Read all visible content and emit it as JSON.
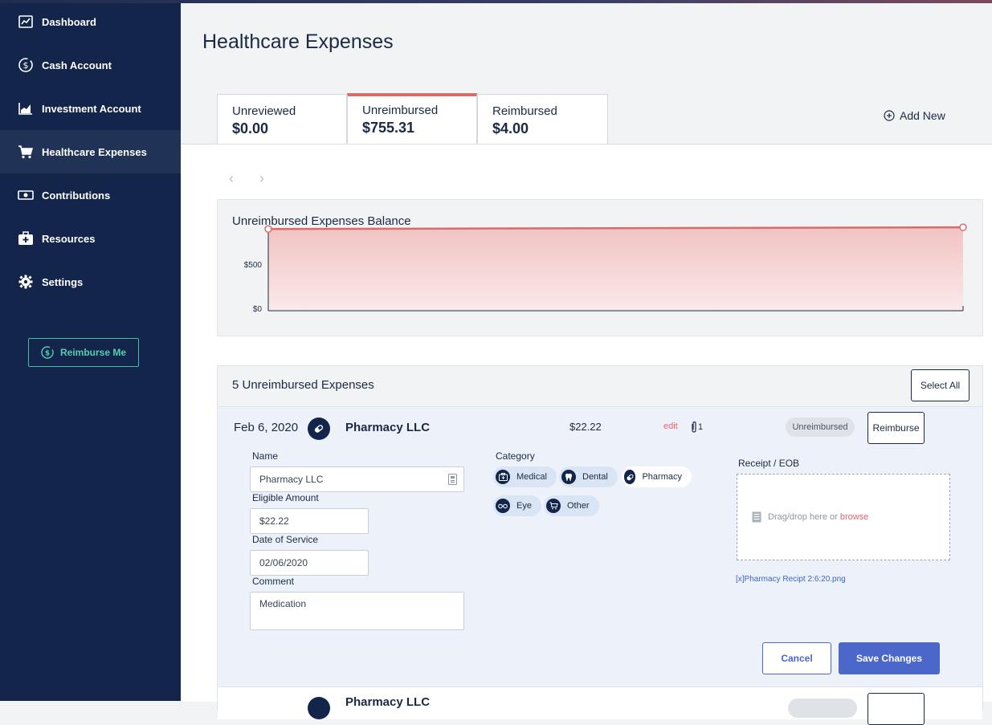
{
  "sidebar": {
    "items": [
      {
        "label": "Dashboard",
        "icon": "dashboard-icon"
      },
      {
        "label": "Cash Account",
        "icon": "dollar-circle-icon"
      },
      {
        "label": "Investment Account",
        "icon": "bar-chart-icon"
      },
      {
        "label": "Healthcare Expenses",
        "icon": "cart-icon",
        "active": true
      },
      {
        "label": "Contributions",
        "icon": "money-icon"
      },
      {
        "label": "Resources",
        "icon": "medical-kit-icon"
      },
      {
        "label": "Settings",
        "icon": "gear-icon"
      }
    ],
    "reimburse_button": "Reimburse Me"
  },
  "page": {
    "title": "Healthcare Expenses"
  },
  "tabs": [
    {
      "name": "Unreviewed",
      "value": "$0.00"
    },
    {
      "name": "Unreimbursed",
      "value": "$755.31",
      "active": true
    },
    {
      "name": "Reimbursed",
      "value": "$4.00"
    }
  ],
  "add_new": "Add New",
  "pager": {
    "prev": "‹",
    "next": "›"
  },
  "chart_data": {
    "type": "area",
    "title": "Unreimbursed Expenses Balance",
    "y_ticks": [
      "$500",
      "$0"
    ],
    "ylim": [
      0,
      800
    ],
    "x": [
      0,
      1
    ],
    "values": [
      740,
      755.31
    ],
    "color": "#d96b6b"
  },
  "expenses": {
    "title": "5 Unreimbursed Expenses",
    "select_all": "Select All",
    "row": {
      "date": "Feb 6, 2020",
      "icon": "pharmacy-icon",
      "payee": "Pharmacy LLC",
      "amount": "$22.22",
      "edit": "edit",
      "attachments": "1",
      "status": "Unreimbursed",
      "reimburse": "Reimburse"
    },
    "form": {
      "name_label": "Name",
      "name_value": "Pharmacy LLC",
      "amount_label": "Eligible Amount",
      "amount_value": "$22.22",
      "date_label": "Date of Service",
      "date_value": "02/06/2020",
      "comment_label": "Comment",
      "comment_value": "Medication",
      "category_label": "Category",
      "categories": [
        {
          "label": "Medical",
          "icon": "medical-kit-icon"
        },
        {
          "label": "Dental",
          "icon": "tooth-icon"
        },
        {
          "label": "Pharmacy",
          "icon": "pill-icon",
          "selected": true
        },
        {
          "label": "Eye",
          "icon": "glasses-icon"
        },
        {
          "label": "Other",
          "icon": "cart-icon"
        }
      ],
      "receipt_label": "Receipt / EOB",
      "dropzone_text": "Drag/drop here or",
      "dropzone_browse": "browse",
      "file_name": "[x]Pharmacy Recipt 2:6:20.png",
      "cancel": "Cancel",
      "save": "Save Changes"
    },
    "next_row_payee": "Pharmacy LLC"
  }
}
